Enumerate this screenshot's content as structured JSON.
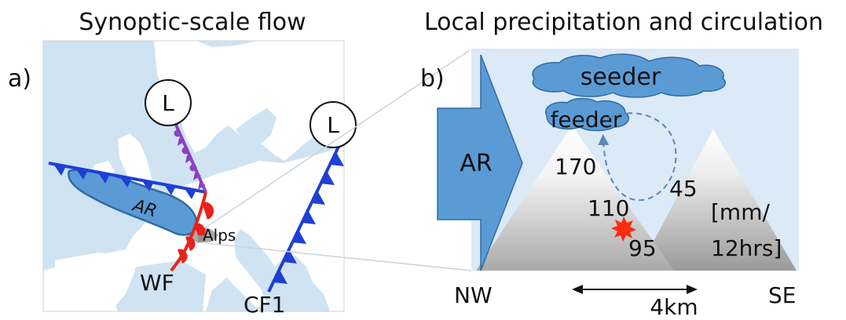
{
  "panel_a": {
    "title": "Synoptic-scale flow",
    "label": "a)",
    "low1_label": "L",
    "low2_label": "L",
    "ar_label": "AR",
    "alps_label": "Alps",
    "wf_label": "WF",
    "cf_label": "CF1"
  },
  "panel_b": {
    "title": "Local precipitation and circulation",
    "label": "b)",
    "seeder_label": "seeder",
    "feeder_label": "feeder",
    "ar_label": "AR",
    "values": [
      "170",
      "45",
      "110",
      "95"
    ],
    "unit_line1": "[mm/",
    "unit_line2": "12hrs]",
    "nw_label": "NW",
    "se_label": "SE",
    "scale_label": "4km"
  },
  "colors": {
    "sea": "#cfe3f2",
    "land": "#ffffff",
    "panel_bg": "#dce9f6",
    "ar_fill": "#5b9bd5",
    "ar_stroke": "#2f6ca3",
    "cold_front": "#1f3fd6",
    "warm_front": "#e8221b",
    "occluded_front": "#8e3fc2",
    "star": "#ff2a10"
  }
}
